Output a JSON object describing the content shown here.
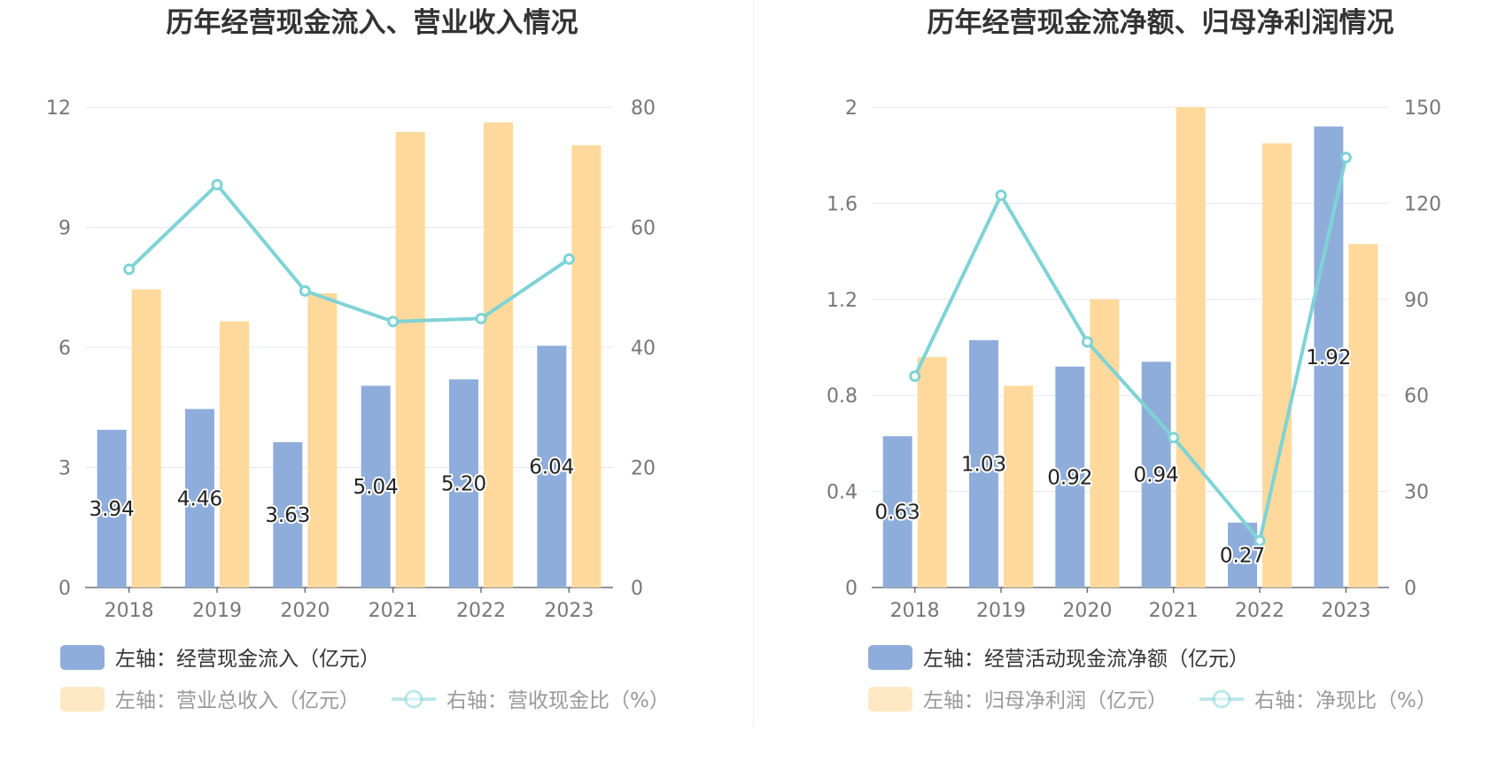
{
  "colors": {
    "bar_primary": "#8FADDB",
    "bar_secondary": "#FFD99B",
    "line": "#7ED3D6",
    "axis_text": "#777777",
    "title_text": "#333333",
    "grid": "#E3E7F1"
  },
  "chart_data": [
    {
      "type": "bar",
      "title": "历年经营现金流入、营业收入情况",
      "categories": [
        "2018",
        "2019",
        "2020",
        "2021",
        "2022",
        "2023"
      ],
      "y_left": {
        "ticks": [
          "0",
          "3",
          "6",
          "9",
          "12"
        ],
        "range": [
          0,
          12
        ]
      },
      "y_right": {
        "ticks": [
          "0",
          "20",
          "40",
          "60",
          "80"
        ],
        "range": [
          0,
          80
        ]
      },
      "series": [
        {
          "name": "左轴：经营现金流入（亿元）",
          "kind": "bar",
          "axis": "left",
          "values": [
            3.94,
            4.46,
            3.63,
            5.04,
            5.2,
            6.04
          ],
          "labels": [
            "3.94",
            "4.46",
            "3.63",
            "5.04",
            "5.20",
            "6.04"
          ]
        },
        {
          "name": "左轴：营业总收入（亿元）",
          "kind": "bar",
          "axis": "left",
          "values": [
            7.45,
            6.65,
            7.35,
            11.38,
            11.62,
            11.05
          ]
        },
        {
          "name": "右轴：营收现金比（%）",
          "kind": "line",
          "axis": "right",
          "values": [
            53.0,
            67.1,
            49.4,
            44.3,
            44.8,
            54.7
          ]
        }
      ],
      "legend": {
        "position": "bottom-left"
      },
      "grid": true
    },
    {
      "type": "bar",
      "title": "历年经营现金流净额、归母净利润情况",
      "categories": [
        "2018",
        "2019",
        "2020",
        "2021",
        "2022",
        "2023"
      ],
      "y_left": {
        "ticks": [
          "0",
          "0.4",
          "0.8",
          "1.2",
          "1.6",
          "2"
        ],
        "range": [
          0,
          2
        ]
      },
      "y_right": {
        "ticks": [
          "0",
          "30",
          "60",
          "90",
          "120",
          "150"
        ],
        "range": [
          0,
          150
        ]
      },
      "series": [
        {
          "name": "左轴：经营活动现金流净额（亿元）",
          "kind": "bar",
          "axis": "left",
          "values": [
            0.63,
            1.03,
            0.92,
            0.94,
            0.27,
            1.92
          ],
          "labels": [
            "0.63",
            "1.03",
            "0.92",
            "0.94",
            "0.27",
            "1.92"
          ]
        },
        {
          "name": "左轴：归母净利润（亿元）",
          "kind": "bar",
          "axis": "left",
          "values": [
            0.96,
            0.84,
            1.2,
            2.0,
            1.85,
            1.43
          ]
        },
        {
          "name": "右轴：净现比（%）",
          "kind": "line",
          "axis": "right",
          "values": [
            66.0,
            122.5,
            76.7,
            46.8,
            14.6,
            134.3
          ]
        }
      ],
      "legend": {
        "position": "bottom-left"
      },
      "grid": true
    }
  ]
}
